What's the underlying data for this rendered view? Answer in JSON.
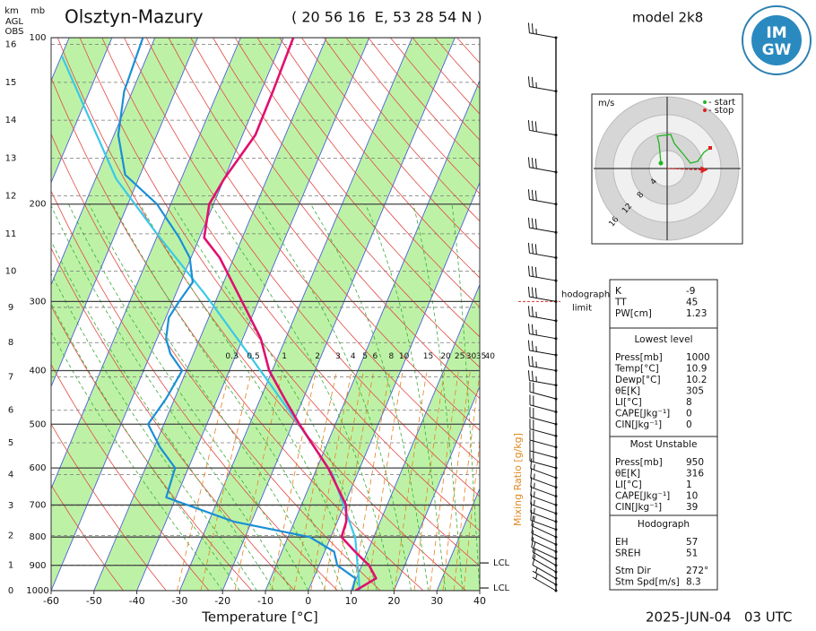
{
  "chart_data": {
    "type": "skewt",
    "title": "Olsztyn-Mazury",
    "location": "( 20 56 16  E, 53 28 54 N )",
    "model": "model 2k8",
    "date": "2025-JUN-04   03 UTC",
    "logo": [
      "IM",
      "GW"
    ],
    "x_label": "Temperature [°C]",
    "xlim": [
      -60,
      40
    ],
    "xticks": [
      -60,
      -50,
      -40,
      -30,
      -20,
      -10,
      0,
      10,
      20,
      30,
      40
    ],
    "y_label": "mb",
    "y_scale": "log",
    "ylim": [
      1000,
      100
    ],
    "yticks": [
      100,
      200,
      300,
      400,
      500,
      600,
      700,
      800,
      900,
      1000
    ],
    "height_label": "km",
    "height_sublabels": [
      "AGL",
      "OBS"
    ],
    "height_ticks": [
      0,
      1,
      2,
      3,
      4,
      5,
      6,
      7,
      8,
      9,
      10,
      11,
      12,
      13,
      14,
      15,
      16
    ],
    "mixing_ratio_label": "Mixing Ratio [g/kg]",
    "mixing_ratios": [
      0.3,
      0.5,
      1,
      2,
      3,
      4,
      5,
      6,
      8,
      10,
      15,
      20,
      25,
      30,
      35,
      40
    ],
    "series": [
      {
        "color": "#e0106e",
        "pressure": [
          1000,
          950,
          900,
          850,
          800,
          750,
          700,
          600,
          500,
          450,
          400,
          350,
          300,
          250,
          230,
          200,
          180,
          150,
          125,
          100
        ],
        "values": [
          11,
          14.6,
          11.7,
          7.1,
          2.5,
          2.1,
          0.4,
          -7.4,
          -18.4,
          -24.3,
          -30.7,
          -35.8,
          -43.8,
          -53.3,
          -58.9,
          -61,
          -60,
          -57,
          -57.2,
          -57.7
        ]
      },
      {
        "color": "#1b8fd6",
        "pressure": [
          1000,
          950,
          900,
          850,
          800,
          750,
          678,
          600,
          550,
          500,
          450,
          400,
          373,
          350,
          321,
          300,
          277,
          250,
          230,
          200,
          177,
          150,
          125,
          100
        ],
        "values": [
          10.2,
          9.8,
          4.3,
          2.2,
          -4.9,
          -24.2,
          -42.3,
          -43.1,
          -48.7,
          -53.7,
          -52,
          -51,
          -55.4,
          -57.9,
          -59.3,
          -58.5,
          -57.2,
          -60.3,
          -64.7,
          -73.2,
          -83.5,
          -89,
          -91.9,
          -92.8
        ]
      },
      {
        "color": "#3cc8e8",
        "pressure": [
          1000,
          803,
          618,
          494,
          380,
          293,
          226,
          180,
          108
        ],
        "values": [
          12,
          5.8,
          -5.6,
          -19.3,
          -36,
          -52.7,
          -70.4,
          -85.2,
          -109.9
        ]
      }
    ],
    "lcl": {
      "labels": [
        "LCL",
        "LCL"
      ],
      "pressure": [
        891,
        989
      ]
    },
    "hodograph_limit": {
      "labels": [
        "hodograph",
        "limit"
      ],
      "pressure": 300
    },
    "wind": {
      "pressure": [
        100,
        125,
        150,
        175,
        200,
        225,
        250,
        275,
        300,
        325,
        350,
        375,
        400,
        425,
        450,
        475,
        500,
        525,
        550,
        575,
        600,
        625,
        650,
        675,
        700,
        725,
        750,
        775,
        800,
        825,
        850,
        875,
        900,
        925,
        950,
        975,
        1000
      ],
      "speed": [
        25,
        25,
        30,
        30,
        30,
        30,
        30,
        30,
        30,
        25,
        25,
        25,
        25,
        25,
        20,
        20,
        20,
        20,
        20,
        20,
        20,
        15,
        15,
        15,
        15,
        15,
        15,
        15,
        10,
        10,
        10,
        10,
        10,
        10,
        10,
        5,
        5
      ],
      "direction": [
        280,
        280,
        280,
        280,
        280,
        280,
        280,
        280,
        280,
        280,
        280,
        280,
        280,
        280,
        285,
        285,
        285,
        285,
        285,
        285,
        285,
        290,
        290,
        290,
        290,
        290,
        290,
        290,
        295,
        295,
        295,
        295,
        300,
        300,
        300,
        300,
        300
      ]
    },
    "hodograph": {
      "unit": "m/s",
      "legend": [
        {
          "label": "- start",
          "color": "#22b422"
        },
        {
          "label": "- stop",
          "color": "#e02020"
        }
      ],
      "rings": [
        4,
        8,
        12,
        16
      ],
      "color": "#22b422",
      "u": [
        -1.4,
        -1.8,
        -2.2,
        0.8,
        1.6,
        3.6,
        5.2,
        6.8,
        8.2,
        9.6
      ],
      "v": [
        1.2,
        5.6,
        7.2,
        7.6,
        5.6,
        3.2,
        1.2,
        1.6,
        3.6,
        4.6
      ]
    },
    "indices": [
      {
        "label": "K",
        "value": -9
      },
      {
        "label": "TT",
        "value": 45
      },
      {
        "label": "PW[cm]",
        "value": 1.23
      }
    ],
    "sections": [
      {
        "title": "Lowest level",
        "rows": [
          {
            "label": "Press[mb]",
            "value": 1000
          },
          {
            "label": "Temp[°C]",
            "value": 10.9
          },
          {
            "label": "Dewp[°C]",
            "value": 10.2
          },
          {
            "label": "θE[K]",
            "value": 305
          },
          {
            "label": "LI[°C]",
            "value": 8
          },
          {
            "label": "CAPE[Jkg⁻¹]",
            "value": 0
          },
          {
            "label": "CIN[Jkg⁻¹]",
            "value": 0
          }
        ]
      },
      {
        "title": "Most Unstable",
        "rows": [
          {
            "label": "Press[mb]",
            "value": 950
          },
          {
            "label": "θE[K]",
            "value": 316
          },
          {
            "label": "LI[°C]",
            "value": 1
          },
          {
            "label": "CAPE[Jkg⁻¹]",
            "value": 10
          },
          {
            "label": "CIN[Jkg⁻¹]",
            "value": 39
          }
        ]
      },
      {
        "title": "Hodograph",
        "rows": [
          {
            "label": "EH",
            "value": 57
          },
          {
            "label": "SREH",
            "value": 51
          },
          {
            "label": "Stm Dir",
            "value": 272,
            "value_label": "272°"
          },
          {
            "label": "Stm Spd[m/s]",
            "value": 8.3
          }
        ]
      }
    ]
  }
}
